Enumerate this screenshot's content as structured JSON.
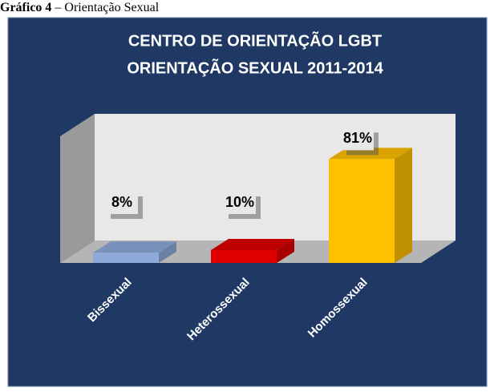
{
  "chart_data": {
    "type": "bar3d",
    "caption_label": "Gráfico 4",
    "caption_text": "– Orientação Sexual",
    "title": [
      "CENTRO DE ORIENTAÇÃO LGBT",
      "ORIENTAÇÃO SEXUAL 2011-2014"
    ],
    "categories": [
      "Bissexual",
      "Heterossexual",
      "Homossexual"
    ],
    "values": [
      8,
      10,
      81
    ],
    "value_labels": [
      "8%",
      "10%",
      "81%"
    ],
    "colors": [
      "#8eaadb",
      "#e00000",
      "#ffc000"
    ]
  }
}
